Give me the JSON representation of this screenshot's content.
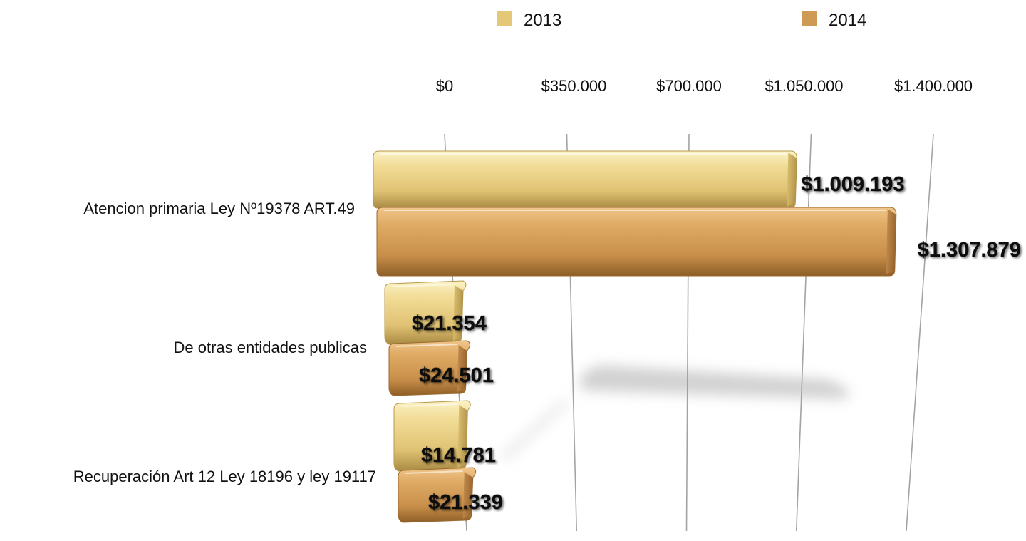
{
  "chart_data": {
    "type": "bar",
    "orientation": "horizontal",
    "title": "",
    "xlabel": "",
    "ylabel": "",
    "categories": [
      "Atencion primaria Ley Nº19378 ART.49",
      "De otras entidades publicas",
      "Recuperación Art 12 Ley 18196 y ley 19117"
    ],
    "series": [
      {
        "name": "2013",
        "color": "#e5c877",
        "values": [
          1009193,
          21354,
          14781
        ],
        "labels": [
          "$1.009.193",
          "$21.354",
          "$14.781"
        ]
      },
      {
        "name": "2014",
        "color": "#cf9a55",
        "values": [
          1307879,
          24501,
          21339
        ],
        "labels": [
          "$1.307.879",
          "$24.501",
          "$21.339"
        ]
      }
    ],
    "xlim": [
      0,
      1400000
    ],
    "ticks": [
      0,
      350000,
      700000,
      1050000,
      1400000
    ],
    "tick_labels": [
      "$0",
      "$350.000",
      "$700.000",
      "$1.050.000",
      "$1.400.000"
    ],
    "grid": true,
    "legend_position": "top",
    "style": "3d perspective"
  }
}
